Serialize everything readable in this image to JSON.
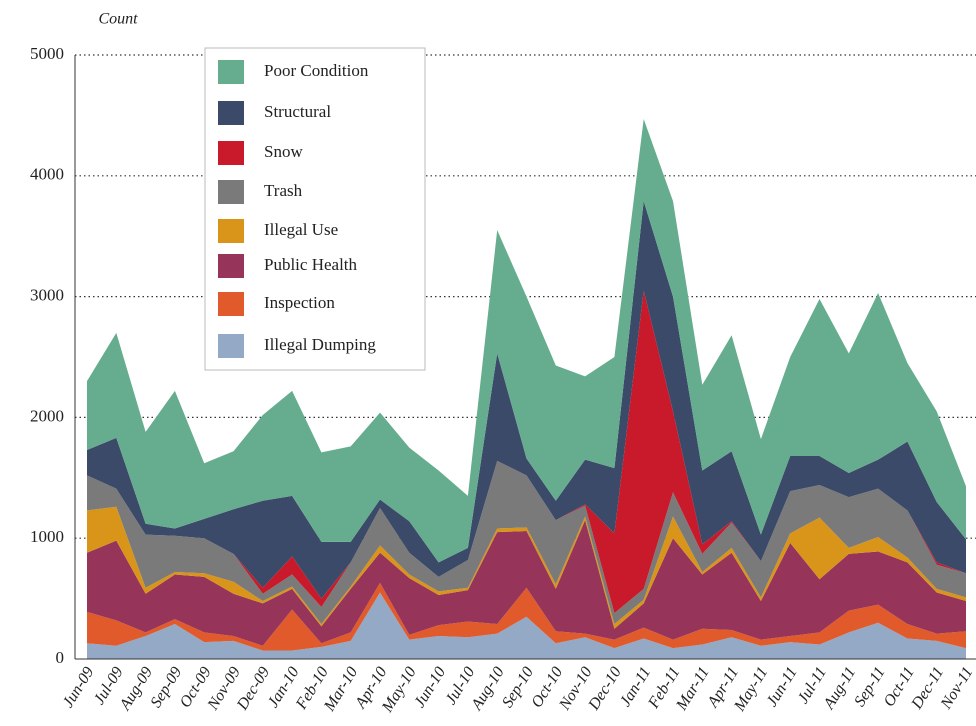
{
  "chart_data": {
    "type": "stacked_area",
    "y_label": "Count",
    "categories": [
      "Jun-09",
      "Jul-09",
      "Aug-09",
      "Sep-09",
      "Oct-09",
      "Nov-09",
      "Dec-09",
      "Jan-10",
      "Feb-10",
      "Mar-10",
      "Apr-10",
      "May-10",
      "Jun-10",
      "Jul-10",
      "Aug-10",
      "Sep-10",
      "Oct-10",
      "Nov-10",
      "Dec-10",
      "Jan-11",
      "Feb-11",
      "Mar-11",
      "Apr-11",
      "May-11",
      "Jun-11",
      "Jul-11",
      "Aug-11",
      "Sep-11",
      "Oct-11",
      "Dec-11",
      "Nov-11"
    ],
    "ylim": [
      0,
      5000
    ],
    "yticks": [
      0,
      1000,
      2000,
      3000,
      4000,
      5000
    ],
    "grid": true,
    "series": [
      {
        "name": "Illegal Dumping",
        "color": "#93a9c6",
        "values": [
          130,
          110,
          190,
          290,
          140,
          150,
          70,
          70,
          100,
          150,
          550,
          160,
          190,
          180,
          210,
          350,
          130,
          180,
          90,
          170,
          90,
          120,
          180,
          110,
          140,
          120,
          220,
          300,
          170,
          150,
          90
        ]
      },
      {
        "name": "Inspection",
        "color": "#e05a2b",
        "values": [
          260,
          210,
          30,
          40,
          80,
          40,
          40,
          340,
          30,
          70,
          80,
          40,
          90,
          130,
          80,
          240,
          100,
          30,
          70,
          90,
          70,
          130,
          60,
          50,
          50,
          100,
          180,
          150,
          120,
          60,
          140
        ]
      },
      {
        "name": "Public Health",
        "color": "#963459",
        "values": [
          490,
          660,
          320,
          370,
          460,
          350,
          350,
          170,
          140,
          360,
          250,
          470,
          250,
          260,
          760,
          470,
          350,
          940,
          90,
          200,
          840,
          450,
          640,
          320,
          770,
          440,
          470,
          440,
          510,
          340,
          250
        ]
      },
      {
        "name": "Illegal Use",
        "color": "#d9951a",
        "values": [
          350,
          280,
          50,
          20,
          30,
          100,
          20,
          20,
          20,
          20,
          60,
          30,
          30,
          20,
          30,
          30,
          40,
          30,
          40,
          30,
          180,
          20,
          40,
          30,
          80,
          510,
          50,
          120,
          40,
          30,
          30
        ]
      },
      {
        "name": "Trash",
        "color": "#7a7a7a",
        "values": [
          290,
          150,
          440,
          300,
          290,
          230,
          60,
          100,
          140,
          200,
          310,
          180,
          120,
          230,
          560,
          430,
          530,
          90,
          90,
          90,
          200,
          150,
          210,
          300,
          350,
          270,
          420,
          400,
          390,
          200,
          200
        ]
      },
      {
        "name": "Snow",
        "color": "#c81a2a",
        "values": [
          0,
          0,
          0,
          0,
          0,
          0,
          50,
          150,
          70,
          0,
          0,
          0,
          0,
          0,
          0,
          0,
          0,
          10,
          660,
          2470,
          670,
          80,
          10,
          0,
          0,
          0,
          0,
          0,
          0,
          20,
          0
        ]
      },
      {
        "name": "Structural",
        "color": "#3b4a68",
        "values": [
          210,
          420,
          90,
          60,
          160,
          370,
          720,
          500,
          470,
          170,
          70,
          260,
          120,
          100,
          890,
          140,
          160,
          370,
          540,
          740,
          950,
          610,
          580,
          220,
          290,
          240,
          200,
          240,
          570,
          500,
          280
        ]
      },
      {
        "name": "Poor Condition",
        "color": "#66ad8f",
        "values": [
          570,
          870,
          760,
          1140,
          460,
          480,
          710,
          870,
          740,
          790,
          720,
          610,
          760,
          430,
          1020,
          1340,
          1120,
          690,
          920,
          680,
          790,
          710,
          960,
          790,
          820,
          1300,
          990,
          1380,
          650,
          750,
          440
        ]
      }
    ]
  }
}
